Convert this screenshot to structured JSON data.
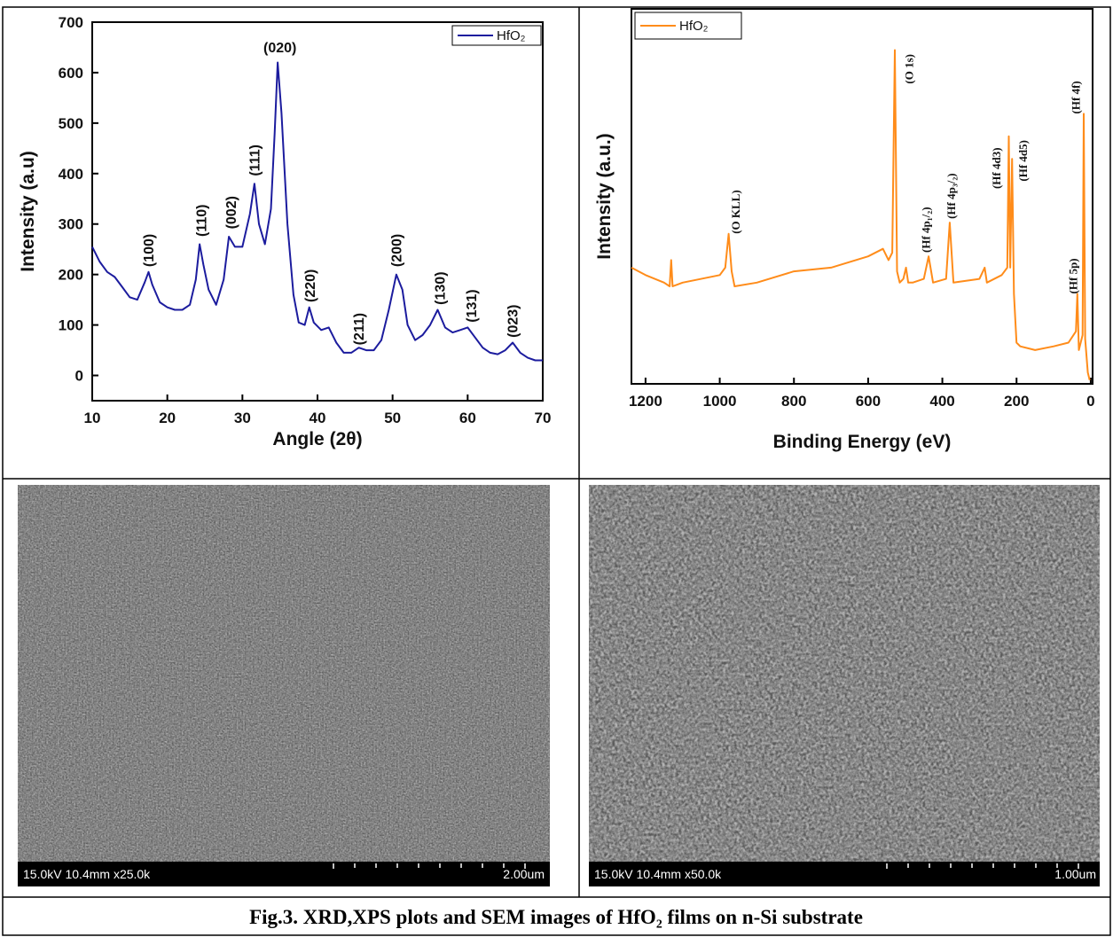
{
  "chart_data": [
    {
      "type": "line",
      "y_label": "Intensity (a.u)",
      "x_label": "Angle (2θ)",
      "xlim": [
        10,
        70
      ],
      "xticks": [
        10,
        20,
        30,
        40,
        50,
        60,
        70
      ],
      "ylim": [
        -50,
        700
      ],
      "yticks": [
        0,
        100,
        200,
        300,
        400,
        500,
        600,
        700
      ],
      "legend": "top-right",
      "x": [
        10,
        11,
        12,
        13,
        14,
        15,
        16,
        17,
        17.5,
        18,
        19,
        20,
        21,
        22,
        23,
        23.8,
        24.3,
        24.8,
        25.5,
        26.5,
        27.5,
        28.2,
        29,
        30,
        31,
        31.6,
        32.2,
        33,
        33.8,
        34.3,
        34.7,
        35.2,
        36,
        36.8,
        37.5,
        38.3,
        38.9,
        39.5,
        40.5,
        41.5,
        42.5,
        43.5,
        44.5,
        45.5,
        46.5,
        47.5,
        48.5,
        49.5,
        50.5,
        51.3,
        52,
        53,
        54,
        55,
        56,
        57,
        58,
        59,
        60,
        61,
        62,
        63,
        64,
        65,
        66,
        67,
        68,
        69,
        70
      ],
      "series": [
        {
          "name": "HfO₂",
          "color": "#1c1c9e",
          "values": [
            255,
            225,
            205,
            195,
            175,
            155,
            150,
            185,
            205,
            180,
            145,
            135,
            130,
            130,
            140,
            190,
            260,
            220,
            170,
            140,
            190,
            275,
            255,
            255,
            320,
            380,
            300,
            260,
            330,
            480,
            620,
            520,
            300,
            160,
            105,
            100,
            135,
            105,
            90,
            95,
            65,
            45,
            45,
            55,
            50,
            50,
            70,
            130,
            200,
            170,
            100,
            70,
            80,
            100,
            130,
            95,
            85,
            90,
            95,
            75,
            55,
            45,
            42,
            50,
            65,
            45,
            35,
            30,
            30
          ]
        }
      ],
      "annotations": [
        {
          "text": "(100)",
          "x": 17.5,
          "y": 215,
          "rotation": 90
        },
        {
          "text": "(110)",
          "x": 24.5,
          "y": 275,
          "rotation": 90
        },
        {
          "text": "(002)",
          "x": 28.5,
          "y": 290,
          "rotation": 90
        },
        {
          "text": "(111)",
          "x": 31.6,
          "y": 395,
          "rotation": 90
        },
        {
          "text": "(020)",
          "x": 35,
          "y": 640,
          "rotation": 0
        },
        {
          "text": "(220)",
          "x": 39,
          "y": 145,
          "rotation": 90
        },
        {
          "text": "(211)",
          "x": 45.5,
          "y": 60,
          "rotation": 90
        },
        {
          "text": "(200)",
          "x": 50.5,
          "y": 215,
          "rotation": 90
        },
        {
          "text": "(130)",
          "x": 56.3,
          "y": 140,
          "rotation": 90
        },
        {
          "text": "(131)",
          "x": 60.5,
          "y": 105,
          "rotation": 90
        },
        {
          "text": "(023)",
          "x": 66,
          "y": 75,
          "rotation": 90
        }
      ]
    },
    {
      "type": "line",
      "y_label": "Intensity (a.u.)",
      "x_label": "Binding Energy (eV)",
      "xlim": [
        1238,
        -5
      ],
      "xticks": [
        1200,
        1000,
        800,
        600,
        400,
        200,
        0
      ],
      "ylim": [
        0,
        100
      ],
      "legend": "top-left",
      "x": [
        1238,
        1200,
        1150,
        1135,
        1131,
        1127,
        1100,
        1000,
        985,
        976,
        968,
        960,
        900,
        800,
        700,
        600,
        560,
        545,
        535,
        528,
        522,
        515,
        505,
        498,
        492,
        480,
        450,
        437,
        425,
        390,
        380,
        370,
        300,
        286,
        280,
        240,
        225,
        221,
        217,
        212,
        207,
        200,
        190,
        150,
        100,
        60,
        40,
        36,
        32,
        22,
        19,
        15,
        8,
        3
      ],
      "series": [
        {
          "name": "HfO₂",
          "color": "#ff8c1a",
          "values": [
            31,
            29,
            27,
            26,
            33,
            26,
            27,
            29,
            31,
            40,
            30,
            26,
            27,
            30,
            31,
            34,
            36,
            33,
            35,
            89,
            30,
            27,
            28,
            31,
            27,
            27,
            28,
            34,
            27,
            28,
            43,
            27,
            28,
            31,
            27,
            29,
            31,
            66,
            31,
            60,
            24,
            11,
            10,
            9,
            10,
            11,
            14,
            24,
            9,
            13,
            72,
            12,
            3,
            1
          ]
        }
      ],
      "annotations": [
        {
          "text": "(O KLL)",
          "x": 957,
          "y": 40,
          "rotation": 90
        },
        {
          "text": "(O 1s)",
          "x": 490,
          "y": 80,
          "rotation": 90
        },
        {
          "text": "(Hf 4p₁/₂)",
          "x": 445,
          "y": 35,
          "rotation": 90
        },
        {
          "text": "(Hf 4p₃/₂)",
          "x": 376,
          "y": 44,
          "rotation": 90
        },
        {
          "text": "(Hf 4d3)",
          "x": 255,
          "y": 52,
          "rotation": 90
        },
        {
          "text": "(Hf 4d5)",
          "x": 183,
          "y": 54,
          "rotation": 90
        },
        {
          "text": "(Hf 4f)",
          "x": 40,
          "y": 72,
          "rotation": 90
        },
        {
          "text": "(Hf 5p)",
          "x": 48,
          "y": 24,
          "rotation": 90
        }
      ]
    }
  ],
  "images": [
    {
      "info": "15.0kV 10.4mm x25.0k",
      "scale": "2.00um"
    },
    {
      "info": "15.0kV 10.4mm x50.0k",
      "scale": "1.00um"
    }
  ],
  "caption": "Fig.3.  XRD,XPS plots and SEM images of HfO₂ films on n-Si substrate"
}
